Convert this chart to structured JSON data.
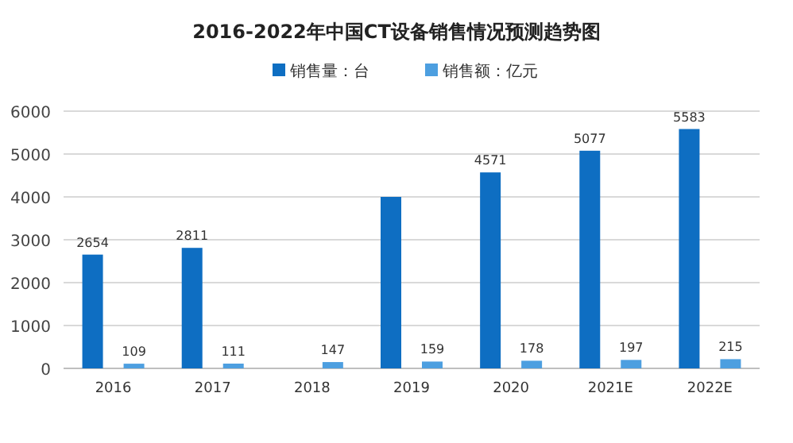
{
  "chart_data": {
    "type": "bar",
    "title": "2016-2022年中国CT设备销售情况预测趋势图",
    "categories": [
      "2016",
      "2017",
      "2018",
      "2019",
      "2020",
      "2021E",
      "2022E"
    ],
    "series": [
      {
        "name": "销售量：台",
        "color": "#0e6ec2",
        "values": [
          2654,
          2811,
          null,
          4000,
          4571,
          5077,
          5583
        ],
        "value_labels": [
          "2654",
          "2811",
          null,
          null,
          "4571",
          "5077",
          "5583"
        ]
      },
      {
        "name": "销售额：亿元",
        "color": "#4d9fe0",
        "values": [
          109,
          111,
          147,
          159,
          178,
          197,
          215
        ],
        "value_labels": [
          "109",
          "111",
          "147",
          "159",
          "178",
          "197",
          "215"
        ]
      }
    ],
    "ylim": [
      0,
      6000
    ],
    "yticks": [
      0,
      1000,
      2000,
      3000,
      4000,
      5000,
      6000
    ],
    "grid": "y",
    "legend": "top"
  }
}
